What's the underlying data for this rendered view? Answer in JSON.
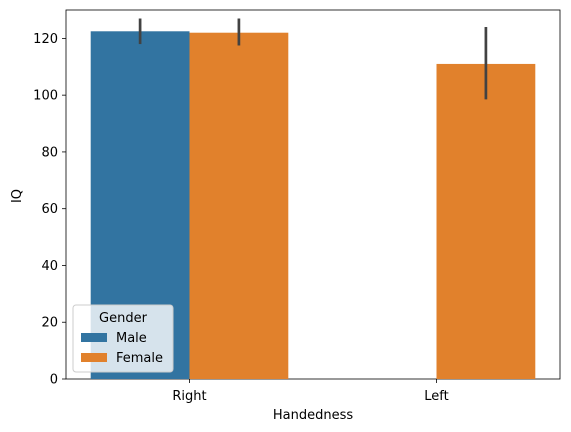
{
  "chart_data": {
    "type": "bar",
    "categories": [
      "Right",
      "Left"
    ],
    "series": [
      {
        "name": "Male",
        "color": "#3274a1",
        "values": [
          122.5,
          null
        ],
        "err_low": [
          118,
          null
        ],
        "err_high": [
          127,
          null
        ]
      },
      {
        "name": "Female",
        "color": "#e1812c",
        "values": [
          122,
          111
        ],
        "err_low": [
          117.5,
          98.5
        ],
        "err_high": [
          127,
          124
        ]
      }
    ],
    "xlabel": "Handedness",
    "ylabel": "IQ",
    "ylim": [
      0,
      130
    ],
    "yticks": [
      0,
      20,
      40,
      60,
      80,
      100,
      120
    ],
    "legend": {
      "title": "Gender",
      "position": "lower-left"
    },
    "grid": false
  }
}
